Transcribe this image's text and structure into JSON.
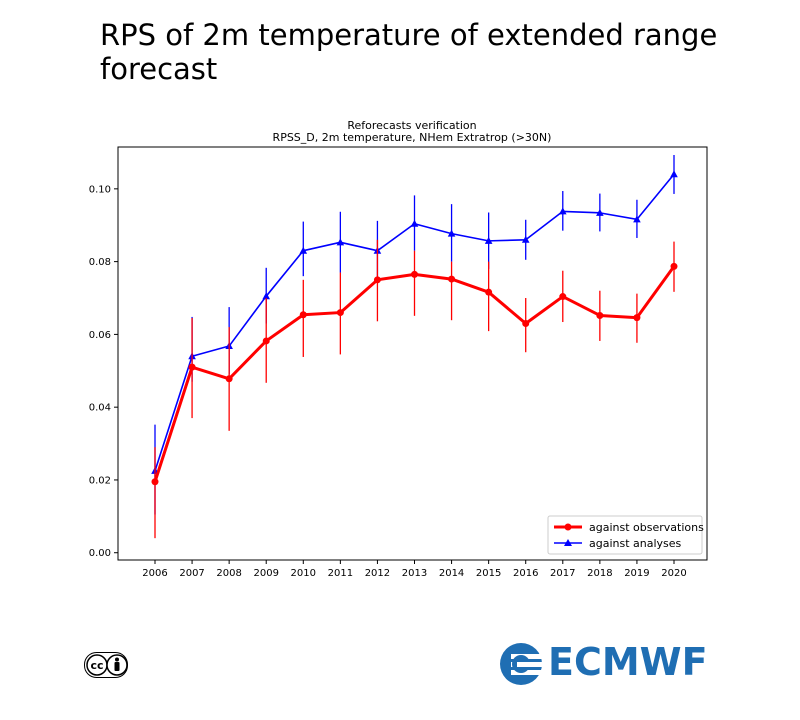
{
  "page_title": "RPS of 2m temperature of extended range forecast",
  "logo_text": "ECMWF",
  "license_badge": "cc",
  "chart_data": {
    "type": "line",
    "title": "Reforecasts verification",
    "subtitle": "RPSS_D, 2m temperature, NHem Extratrop (>30N)",
    "xlabel": "",
    "ylabel": "",
    "categories": [
      "2006",
      "2007",
      "2008",
      "2009",
      "2010",
      "2011",
      "2012",
      "2013",
      "2014",
      "2015",
      "2016",
      "2017",
      "2018",
      "2019",
      "2020"
    ],
    "ylim": [
      -0.002,
      0.1115
    ],
    "yticks": [
      0.0,
      0.02,
      0.04,
      0.06,
      0.08,
      0.1
    ],
    "ytick_labels": [
      "0.00",
      "0.02",
      "0.04",
      "0.06",
      "0.08",
      "0.10"
    ],
    "grid": false,
    "legend_position": "lower-right",
    "series": [
      {
        "name": "against observations",
        "color": "#ff0000",
        "marker": "circle",
        "values": [
          0.0195,
          0.051,
          0.0478,
          0.0582,
          0.0654,
          0.066,
          0.075,
          0.0765,
          0.0752,
          0.0716,
          0.063,
          0.0704,
          0.0652,
          0.0646,
          0.0787
        ],
        "err_low": [
          0.004,
          0.037,
          0.0335,
          0.0467,
          0.0538,
          0.0545,
          0.0636,
          0.0651,
          0.0639,
          0.0609,
          0.0551,
          0.0634,
          0.0582,
          0.0577,
          0.0717
        ],
        "err_high": [
          0.029,
          0.0645,
          0.062,
          0.07,
          0.075,
          0.077,
          0.086,
          0.083,
          0.08,
          0.08,
          0.07,
          0.0775,
          0.072,
          0.0712,
          0.0855
        ]
      },
      {
        "name": "against analyses",
        "color": "#0000ff",
        "marker": "triangle",
        "values": [
          0.0225,
          0.054,
          0.0568,
          0.0705,
          0.083,
          0.0853,
          0.083,
          0.0904,
          0.0877,
          0.0857,
          0.086,
          0.0938,
          0.0934,
          0.0916,
          0.104
        ],
        "err_low": [
          0.0105,
          0.047,
          0.049,
          0.063,
          0.076,
          0.077,
          0.075,
          0.083,
          0.08,
          0.078,
          0.0805,
          0.0885,
          0.0883,
          0.0865,
          0.0986
        ],
        "err_high": [
          0.0352,
          0.0648,
          0.0675,
          0.0783,
          0.091,
          0.0937,
          0.0912,
          0.0982,
          0.0958,
          0.0935,
          0.0915,
          0.0994,
          0.0987,
          0.097,
          0.1093
        ]
      }
    ]
  }
}
